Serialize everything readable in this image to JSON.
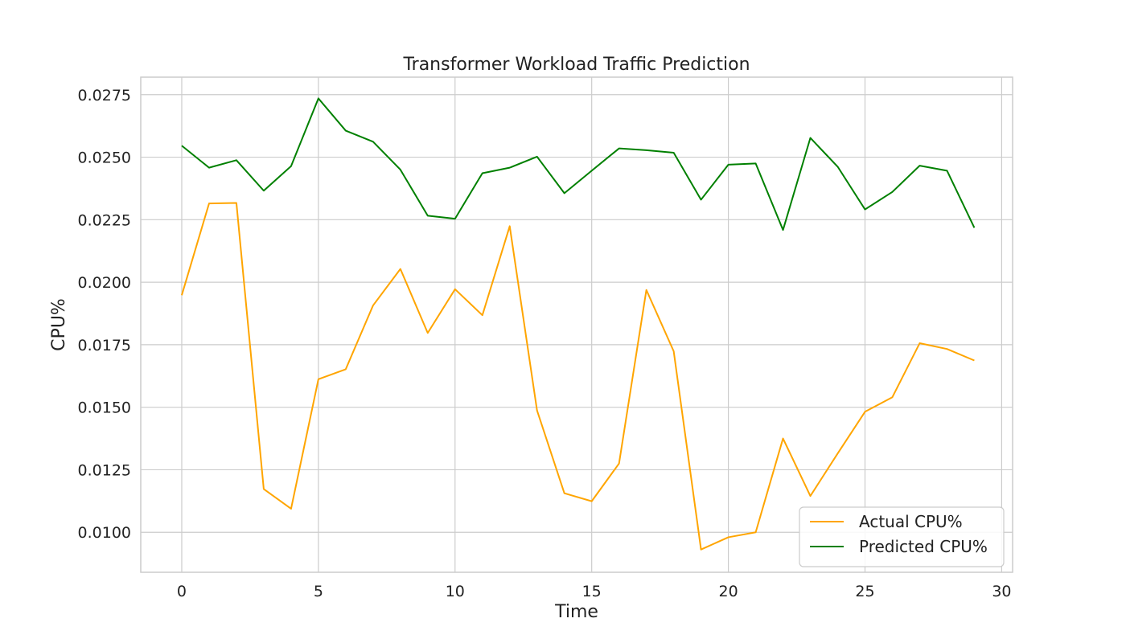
{
  "chart_data": {
    "type": "line",
    "title": "Transformer Workload Traffic Prediction",
    "xlabel": "Time",
    "ylabel": "CPU%",
    "xlim": [
      -1.5,
      30.4
    ],
    "ylim": [
      0.0084,
      0.0282
    ],
    "xticks": [
      0,
      5,
      10,
      15,
      20,
      25,
      30
    ],
    "yticks": [
      0.01,
      0.0125,
      0.015,
      0.0175,
      0.02,
      0.0225,
      0.025,
      0.0275
    ],
    "ytick_labels": [
      "0.0100",
      "0.0125",
      "0.0150",
      "0.0175",
      "0.0200",
      "0.0225",
      "0.0250",
      "0.0275"
    ],
    "grid": true,
    "legend_position": "lower-right",
    "x": [
      0,
      1,
      2,
      3,
      4,
      5,
      6,
      7,
      8,
      9,
      10,
      11,
      12,
      13,
      14,
      15,
      16,
      17,
      18,
      19,
      20,
      21,
      22,
      23,
      24,
      25,
      26,
      27,
      28,
      29
    ],
    "series": [
      {
        "name": "Actual CPU%",
        "color": "#ffa500",
        "values": [
          0.01948,
          0.02315,
          0.02317,
          0.01173,
          0.01094,
          0.01612,
          0.01652,
          0.01907,
          0.02053,
          0.01797,
          0.01972,
          0.01868,
          0.02224,
          0.01487,
          0.01156,
          0.01124,
          0.01275,
          0.01969,
          0.01724,
          0.00931,
          0.0098,
          0.01,
          0.01375,
          0.01145,
          0.01315,
          0.01482,
          0.0154,
          0.01756,
          0.01733,
          0.01687
        ]
      },
      {
        "name": "Predicted CPU%",
        "color": "#008000",
        "values": [
          0.02546,
          0.02458,
          0.02488,
          0.02366,
          0.02464,
          0.02735,
          0.02606,
          0.02562,
          0.0245,
          0.02266,
          0.02254,
          0.02436,
          0.02458,
          0.02502,
          0.02356,
          0.02446,
          0.02535,
          0.02528,
          0.02518,
          0.0233,
          0.0247,
          0.02475,
          0.02209,
          0.02577,
          0.02462,
          0.02291,
          0.02361,
          0.02466,
          0.02446,
          0.02218
        ]
      }
    ]
  }
}
